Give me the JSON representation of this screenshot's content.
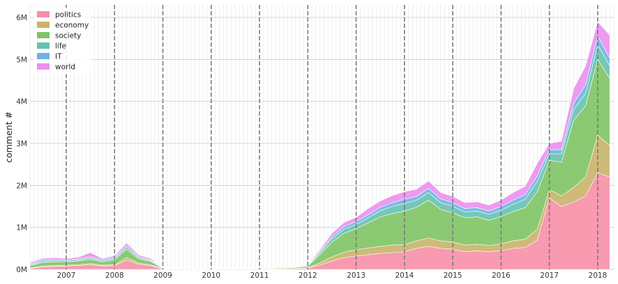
{
  "chart_data": {
    "type": "area",
    "stacked": true,
    "ylabel": "comment #",
    "xlim": [
      "2006-04",
      "2018-05"
    ],
    "ylim": [
      0,
      6300000
    ],
    "y_ticks": [
      {
        "value": 0,
        "label": "0M"
      },
      {
        "value": 1000000,
        "label": "1M"
      },
      {
        "value": 2000000,
        "label": "2M"
      },
      {
        "value": 3000000,
        "label": "3M"
      },
      {
        "value": 4000000,
        "label": "4M"
      },
      {
        "value": 5000000,
        "label": "5M"
      },
      {
        "value": 6000000,
        "label": "6M"
      }
    ],
    "x_ticks": [
      {
        "value": "2007-01",
        "label": "2007"
      },
      {
        "value": "2008-01",
        "label": "2008"
      },
      {
        "value": "2009-01",
        "label": "2009"
      },
      {
        "value": "2010-01",
        "label": "2010"
      },
      {
        "value": "2011-01",
        "label": "2011"
      },
      {
        "value": "2012-01",
        "label": "2012"
      },
      {
        "value": "2013-01",
        "label": "2013"
      },
      {
        "value": "2014-01",
        "label": "2014"
      },
      {
        "value": "2015-01",
        "label": "2015"
      },
      {
        "value": "2016-01",
        "label": "2016"
      },
      {
        "value": "2017-01",
        "label": "2017"
      },
      {
        "value": "2018-01",
        "label": "2018"
      }
    ],
    "vertical_dashed_lines": [
      "2007-01",
      "2008-01",
      "2009-01",
      "2010-01",
      "2011-01",
      "2012-01",
      "2013-01",
      "2014-01",
      "2015-01",
      "2016-01",
      "2017-01",
      "2018-01"
    ],
    "grid": true,
    "minor_vertical_grid": "monthly",
    "legend_position": "top-left",
    "x": [
      "2006-04",
      "2006-07",
      "2006-10",
      "2007-01",
      "2007-04",
      "2007-07",
      "2007-10",
      "2008-01",
      "2008-04",
      "2008-07",
      "2008-10",
      "2009-01",
      "2009-04",
      "2009-07",
      "2009-10",
      "2010-01",
      "2010-04",
      "2010-07",
      "2010-10",
      "2011-01",
      "2011-04",
      "2011-07",
      "2011-10",
      "2012-01",
      "2012-04",
      "2012-07",
      "2012-10",
      "2013-01",
      "2013-04",
      "2013-07",
      "2013-10",
      "2014-01",
      "2014-04",
      "2014-07",
      "2014-10",
      "2015-01",
      "2015-04",
      "2015-07",
      "2015-10",
      "2016-01",
      "2016-04",
      "2016-07",
      "2016-10",
      "2017-01",
      "2017-04",
      "2017-07",
      "2017-10",
      "2018-01",
      "2018-04"
    ],
    "series": [
      {
        "name": "politics",
        "color": "#f78fa7",
        "values": [
          20000,
          60000,
          70000,
          80000,
          90000,
          110000,
          80000,
          90000,
          220000,
          120000,
          90000,
          10000,
          5000,
          5000,
          3000,
          3000,
          5000,
          5000,
          5000,
          10000,
          8000,
          10000,
          15000,
          30000,
          100000,
          200000,
          280000,
          320000,
          350000,
          380000,
          400000,
          420000,
          500000,
          550000,
          500000,
          480000,
          420000,
          440000,
          420000,
          450000,
          500000,
          520000,
          700000,
          1700000,
          1500000,
          1600000,
          1750000,
          2300000,
          2200000
        ]
      },
      {
        "name": "economy",
        "color": "#c9b469",
        "values": [
          10000,
          20000,
          20000,
          20000,
          20000,
          30000,
          20000,
          20000,
          60000,
          30000,
          20000,
          3000,
          2000,
          2000,
          2000,
          2000,
          2000,
          2000,
          2000,
          3000,
          3000,
          4000,
          5000,
          10000,
          50000,
          100000,
          130000,
          150000,
          160000,
          170000,
          180000,
          170000,
          180000,
          200000,
          180000,
          170000,
          160000,
          160000,
          150000,
          160000,
          180000,
          200000,
          250000,
          200000,
          250000,
          350000,
          450000,
          900000,
          750000
        ]
      },
      {
        "name": "society",
        "color": "#7ec464",
        "values": [
          60000,
          80000,
          90000,
          80000,
          90000,
          100000,
          80000,
          120000,
          200000,
          100000,
          80000,
          10000,
          5000,
          5000,
          4000,
          4000,
          5000,
          5000,
          8000,
          15000,
          15000,
          20000,
          25000,
          40000,
          200000,
          350000,
          450000,
          500000,
          600000,
          700000,
          750000,
          800000,
          800000,
          900000,
          750000,
          700000,
          650000,
          650000,
          600000,
          650000,
          700000,
          750000,
          900000,
          700000,
          800000,
          1600000,
          1700000,
          1800000,
          1600000
        ]
      },
      {
        "name": "life",
        "color": "#66c2b0",
        "values": [
          20000,
          30000,
          30000,
          25000,
          25000,
          30000,
          25000,
          30000,
          50000,
          30000,
          20000,
          3000,
          2000,
          2000,
          2000,
          2000,
          2000,
          2000,
          3000,
          5000,
          5000,
          6000,
          8000,
          10000,
          50000,
          80000,
          100000,
          100000,
          120000,
          150000,
          170000,
          180000,
          170000,
          180000,
          160000,
          150000,
          140000,
          140000,
          140000,
          150000,
          170000,
          200000,
          250000,
          150000,
          200000,
          250000,
          300000,
          350000,
          300000
        ]
      },
      {
        "name": "IT",
        "color": "#6fb3e6",
        "values": [
          20000,
          30000,
          30000,
          25000,
          25000,
          30000,
          25000,
          25000,
          40000,
          25000,
          20000,
          3000,
          2000,
          2000,
          2000,
          2000,
          2000,
          2000,
          3000,
          5000,
          5000,
          6000,
          8000,
          10000,
          30000,
          50000,
          60000,
          70000,
          70000,
          80000,
          90000,
          100000,
          90000,
          100000,
          90000,
          90000,
          80000,
          80000,
          80000,
          90000,
          100000,
          110000,
          130000,
          100000,
          100000,
          150000,
          200000,
          200000,
          180000
        ]
      },
      {
        "name": "world",
        "color": "#ec8ff0",
        "values": [
          30000,
          40000,
          40000,
          30000,
          40000,
          100000,
          30000,
          40000,
          60000,
          40000,
          30000,
          5000,
          3000,
          3000,
          3000,
          3000,
          3000,
          3000,
          4000,
          6000,
          6000,
          8000,
          10000,
          15000,
          40000,
          80000,
          100000,
          100000,
          150000,
          150000,
          170000,
          180000,
          170000,
          180000,
          150000,
          150000,
          140000,
          140000,
          140000,
          150000,
          180000,
          200000,
          300000,
          150000,
          200000,
          350000,
          450000,
          350000,
          550000
        ]
      }
    ]
  }
}
